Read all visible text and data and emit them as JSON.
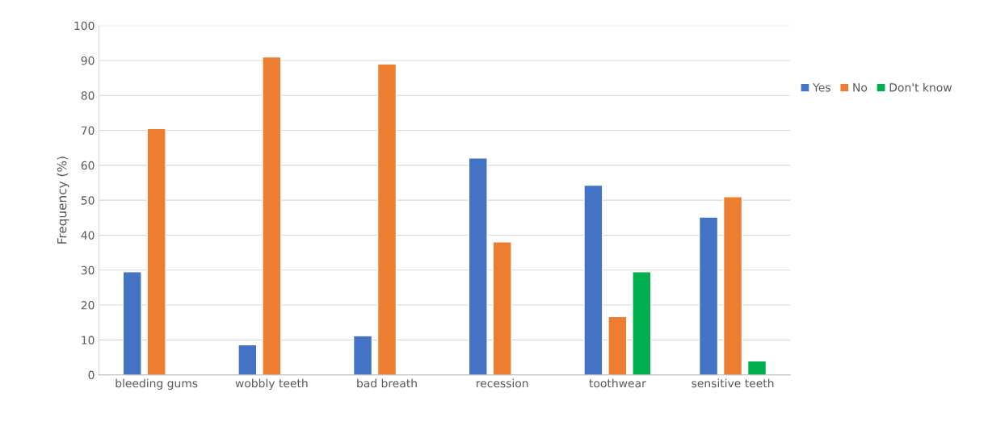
{
  "chart_data": {
    "type": "bar",
    "ylabel": "Frequency (%)",
    "categories": [
      "bleeding gums",
      "wobbly teeth",
      "bad breath",
      "recession",
      "toothwear",
      "sensitive teeth"
    ],
    "series": [
      {
        "name": "Yes",
        "color": "#4472c4",
        "values": [
          29.5,
          8.6,
          11.2,
          62.1,
          54.3,
          45.2
        ]
      },
      {
        "name": "No",
        "color": "#ed7d31",
        "values": [
          70.5,
          91.0,
          89.0,
          38.1,
          16.7,
          51.0
        ]
      },
      {
        "name": "Don't know",
        "color": "#00b050",
        "values": [
          null,
          null,
          null,
          null,
          29.5,
          4.0
        ]
      }
    ],
    "ylim": [
      0,
      100
    ],
    "yticks": [
      0,
      10,
      20,
      30,
      40,
      50,
      60,
      70,
      80,
      90,
      100
    ],
    "grid": "y",
    "legend": "right"
  }
}
